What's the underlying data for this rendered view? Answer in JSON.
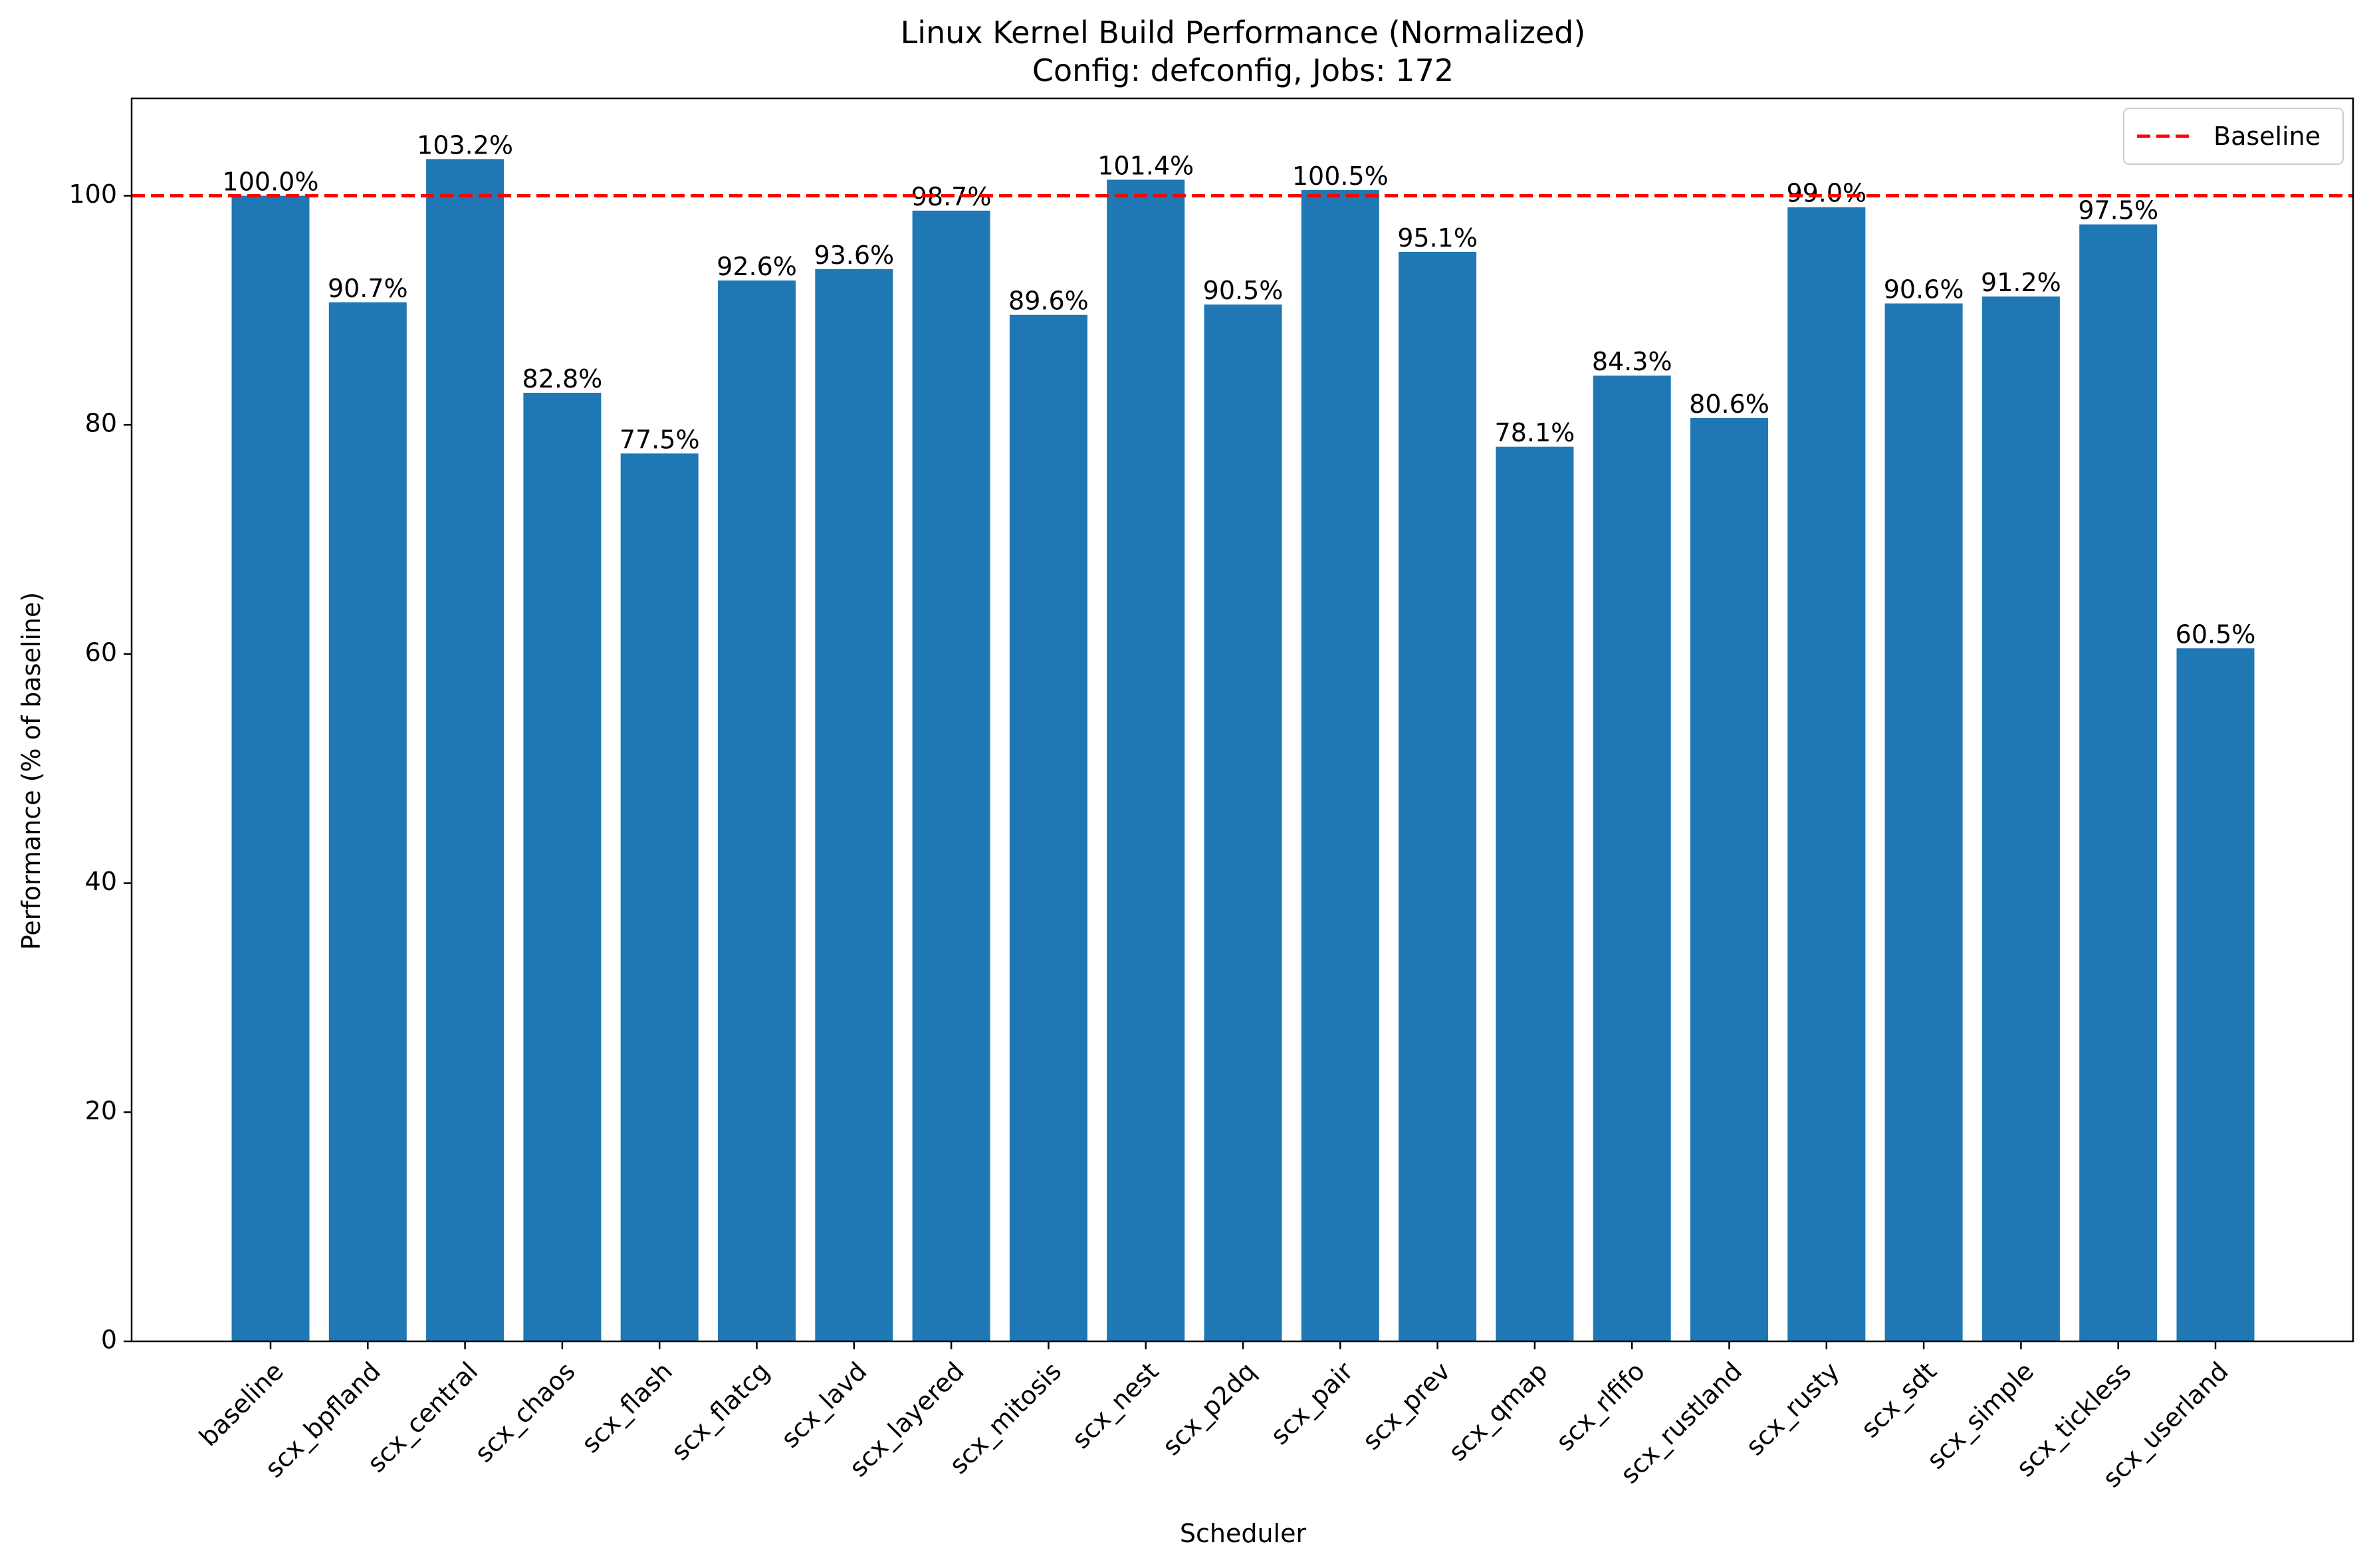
{
  "chart_data": {
    "type": "bar",
    "title": "Linux Kernel Build Performance (Normalized)",
    "subtitle": "Config: defconfig, Jobs: 172",
    "xlabel": "Scheduler",
    "ylabel": "Performance (% of baseline)",
    "ylim": [
      0,
      108.5
    ],
    "yticks": [
      0,
      20,
      40,
      60,
      80,
      100
    ],
    "categories": [
      "baseline",
      "scx_bpfland",
      "scx_central",
      "scx_chaos",
      "scx_flash",
      "scx_flatcg",
      "scx_lavd",
      "scx_layered",
      "scx_mitosis",
      "scx_nest",
      "scx_p2dq",
      "scx_pair",
      "scx_prev",
      "scx_qmap",
      "scx_rlfifo",
      "scx_rustland",
      "scx_rusty",
      "scx_sdt",
      "scx_simple",
      "scx_tickless",
      "scx_userland"
    ],
    "values": [
      100.0,
      90.7,
      103.2,
      82.8,
      77.5,
      92.6,
      93.6,
      98.7,
      89.6,
      101.4,
      90.5,
      100.5,
      95.1,
      78.1,
      84.3,
      80.6,
      99.0,
      90.6,
      91.2,
      97.5,
      60.5
    ],
    "data_labels": [
      "100.0%",
      "90.7%",
      "103.2%",
      "82.8%",
      "77.5%",
      "92.6%",
      "93.6%",
      "98.7%",
      "89.6%",
      "101.4%",
      "90.5%",
      "100.5%",
      "95.1%",
      "78.1%",
      "84.3%",
      "80.6%",
      "99.0%",
      "90.6%",
      "91.2%",
      "97.5%",
      "60.5%"
    ],
    "bar_color": "#1f77b4",
    "reference_line": {
      "value": 100,
      "label": "Baseline",
      "color": "#ff0000",
      "style": "dashed"
    },
    "legend": {
      "position": "top-right",
      "entries": [
        "Baseline"
      ]
    },
    "grid": false
  }
}
